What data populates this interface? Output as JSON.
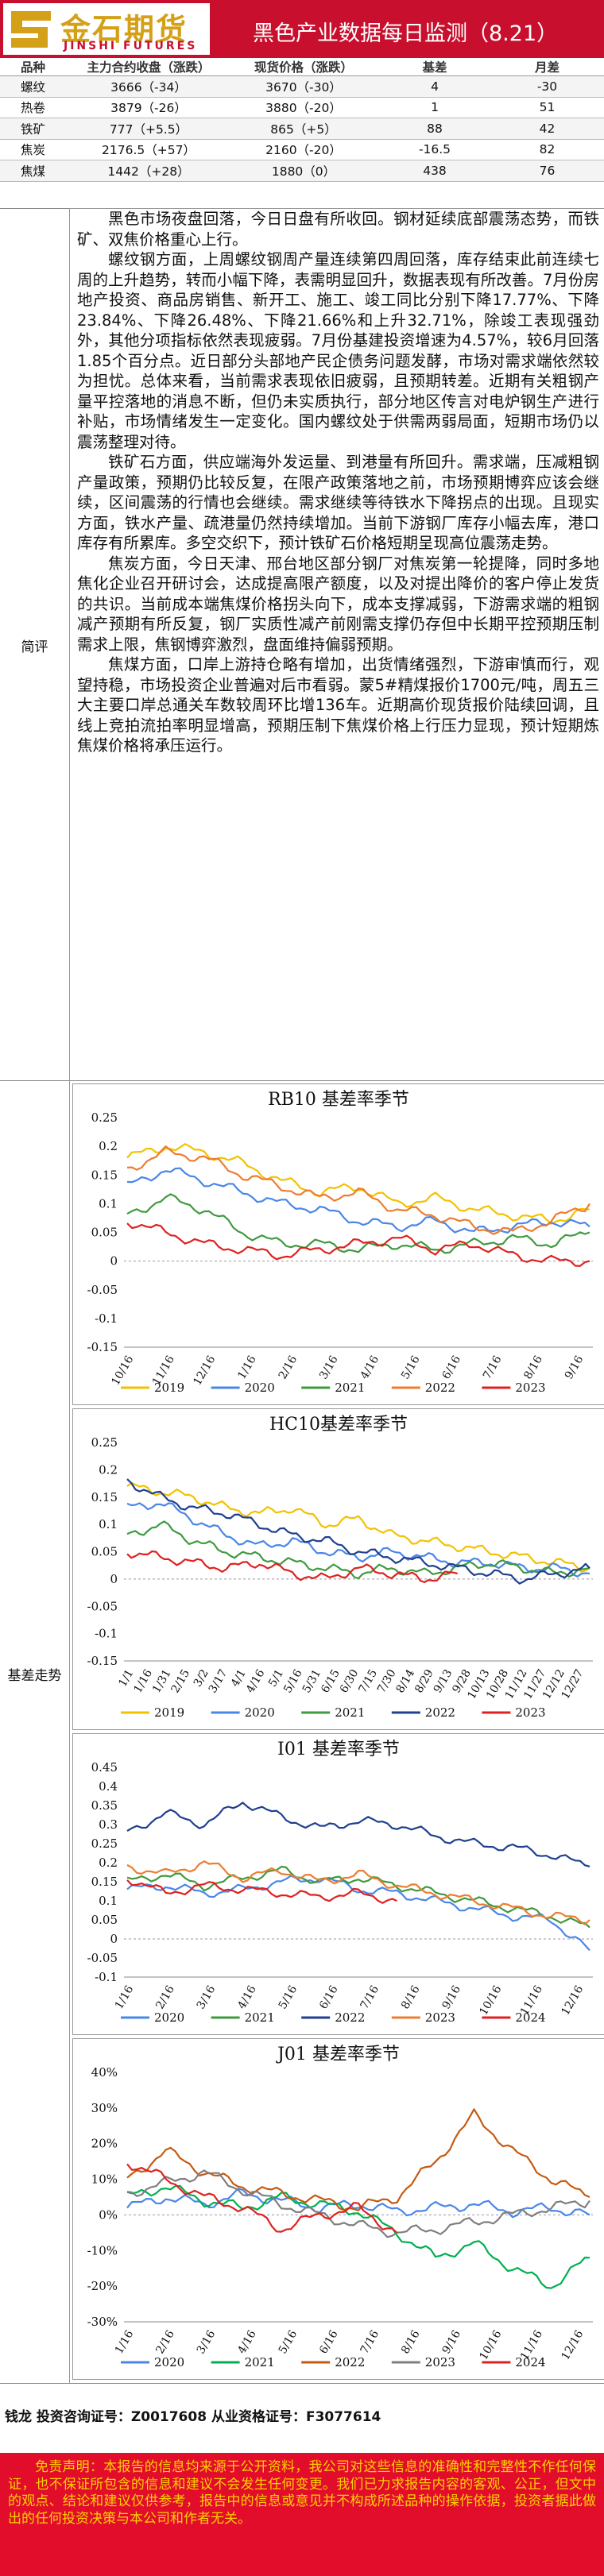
{
  "header": {
    "logo_cn": "金石期货",
    "logo_en": "JINSHI FUTURES",
    "title": "黑色产业数据每日监测（8.21）",
    "brand_red": "#c8102e",
    "brand_gold": "#d4a017"
  },
  "price_table": {
    "columns": [
      "品种",
      "主力合约收盘（涨跌）",
      "现货价格（涨跌）",
      "基差",
      "月差"
    ],
    "rows": [
      [
        "螺纹",
        "3666（-34）",
        "3670（-30）",
        "4",
        "-30"
      ],
      [
        "热卷",
        "3879（-26）",
        "3880（-20）",
        "1",
        "51"
      ],
      [
        "铁矿",
        "777（+5.5）",
        "865（+5）",
        "88",
        "42"
      ],
      [
        "焦炭",
        "2176.5（+57）",
        "2160（-20）",
        "-16.5",
        "82"
      ],
      [
        "焦煤",
        "1442（+28）",
        "1880（0）",
        "438",
        "76"
      ]
    ]
  },
  "commentary": {
    "label": "简评",
    "paragraphs": [
      "黑色市场夜盘回落，今日日盘有所收回。钢材延续底部震荡态势，而铁矿、双焦价格重心上行。",
      "螺纹钢方面，上周螺纹钢周产量连续第四周回落，库存结束此前连续七周的上升趋势，转而小幅下降，表需明显回升，数据表现有所改善。7月份房地产投资、商品房销售、新开工、施工、竣工同比分别下降17.77%、下降23.84%、下降26.48%、下降21.66%和上升32.71%，除竣工表现强劲外，其他分项指标依然表现疲弱。7月份基建投资增速为4.57%，较6月回落1.85个百分点。近日部分头部地产民企债务问题发酵，市场对需求端依然较为担忧。总体来看，当前需求表现依旧疲弱，且预期转差。近期有关粗钢产量平控落地的消息不断，但仍未实质执行，部分地区传言对电炉钢生产进行补贴，市场情绪发生一定变化。国内螺纹处于供需两弱局面，短期市场仍以震荡整理对待。",
      "铁矿石方面，供应端海外发运量、到港量有所回升。需求端，压减粗钢产量政策，预期仍比较反复，在限产政策落地之前，市场预期博弈应该会继续，区间震荡的行情也会继续。需求继续等待铁水下降拐点的出现。且现实方面，铁水产量、疏港量仍然持续增加。当前下游钢厂库存小幅去库，港口库存有所累库。多空交织下，预计铁矿石价格短期呈现高位震荡走势。",
      "焦炭方面，今日天津、邢台地区部分钢厂对焦炭第一轮提降，同时多地焦化企业召开研讨会，达成提高限产额度，以及对提出降价的客户停止发货的共识。当前成本端焦煤价格拐头向下，成本支撑减弱，下游需求端的粗钢减产预期有所反复，钢厂实质性减产前刚需支撑仍存但中长期平控预期压制需求上限，焦钢博弈激烈，盘面维持偏弱预期。",
      "焦煤方面，口岸上游持仓略有增加，出货情绪强烈，下游审慎而行，观望持稳，市场投资企业普遍对后市看弱。蒙5#精煤报价1700元/吨，周五三大主要口岸总通关车数较周环比增136车。近期高价现货报价陆续回调，且线上竞拍流拍率明显增高，预期压制下焦煤价格上行压力显现，预计短期炼焦煤价格将承压运行。"
    ]
  },
  "charts_label": "基差走势",
  "chart_data": [
    {
      "type": "line",
      "title": "RB10 基差率季节",
      "ylim": [
        -0.15,
        0.25
      ],
      "yticks": [
        "0.25",
        "0.2",
        "0.15",
        "0.1",
        "0.05",
        "0",
        "-0.05",
        "-0.1",
        "-0.15"
      ],
      "xticks": [
        "10/16",
        "11/16",
        "12/16",
        "1/16",
        "2/16",
        "3/16",
        "4/16",
        "5/16",
        "6/16",
        "7/16",
        "8/16",
        "9/16"
      ],
      "series": [
        {
          "name": "2019",
          "color": "#f2c200",
          "values": [
            0.18,
            0.2,
            0.19,
            0.17,
            0.14,
            0.12,
            0.13,
            0.1,
            0.11,
            0.09,
            0.08,
            0.07,
            0.09
          ]
        },
        {
          "name": "2020",
          "color": "#4a86e8",
          "values": [
            0.13,
            0.16,
            0.14,
            0.12,
            0.1,
            0.09,
            0.07,
            0.06,
            0.07,
            0.05,
            0.06,
            0.07,
            0.06
          ]
        },
        {
          "name": "2021",
          "color": "#3f9a3f",
          "values": [
            0.08,
            0.11,
            0.09,
            0.05,
            0.03,
            0.03,
            0.02,
            0.03,
            0.02,
            0.03,
            0.04,
            0.03,
            0.05
          ]
        },
        {
          "name": "2022",
          "color": "#ed7d31",
          "values": [
            0.16,
            0.19,
            0.18,
            0.15,
            0.13,
            0.11,
            0.12,
            0.09,
            0.08,
            0.06,
            0.05,
            0.07,
            0.1
          ]
        },
        {
          "name": "2023",
          "color": "#e02020",
          "values": [
            0.07,
            0.05,
            0.03,
            0.02,
            0.01,
            0.02,
            0.03,
            0.04,
            0.02,
            0.03,
            0.01,
            0.0,
            0.0
          ]
        }
      ]
    },
    {
      "type": "line",
      "title": "HC10基差率季节",
      "ylim": [
        -0.15,
        0.25
      ],
      "yticks": [
        "0.25",
        "0.2",
        "0.15",
        "0.1",
        "0.05",
        "0",
        "-0.05",
        "-0.1",
        "-0.15"
      ],
      "xticks": [
        "1/1",
        "1/16",
        "1/31",
        "2/15",
        "3/2",
        "3/17",
        "4/1",
        "4/16",
        "5/1",
        "5/16",
        "5/31",
        "6/15",
        "6/30",
        "7/15",
        "7/30",
        "8/14",
        "8/29",
        "9/13",
        "9/28",
        "10/13",
        "10/28",
        "11/12",
        "11/27",
        "12/12",
        "12/27"
      ],
      "series": [
        {
          "name": "2019",
          "color": "#f2c200",
          "values": [
            0.17,
            0.16,
            0.15,
            0.13,
            0.12,
            0.13,
            0.1,
            0.11,
            0.08,
            0.07,
            0.06,
            0.05,
            0.04,
            0.03,
            0.02
          ]
        },
        {
          "name": "2020",
          "color": "#4a86e8",
          "values": [
            0.13,
            0.14,
            0.11,
            0.08,
            0.06,
            0.07,
            0.05,
            0.04,
            0.05,
            0.04,
            0.03,
            0.03,
            0.02,
            0.02,
            0.01
          ]
        },
        {
          "name": "2021",
          "color": "#3f9a3f",
          "values": [
            0.08,
            0.1,
            0.07,
            0.05,
            0.04,
            0.03,
            0.02,
            0.01,
            0.02,
            0.01,
            0.02,
            0.03,
            0.02,
            0.01,
            0.02
          ]
        },
        {
          "name": "2022",
          "color": "#1f3f8f",
          "values": [
            0.18,
            0.15,
            0.13,
            0.12,
            0.1,
            0.08,
            0.07,
            0.05,
            0.04,
            0.03,
            0.02,
            0.01,
            0.0,
            0.01,
            0.02
          ]
        },
        {
          "name": "2023",
          "color": "#e02020",
          "values": [
            0.05,
            0.04,
            0.03,
            0.02,
            0.03,
            0.01,
            0.0,
            0.02,
            0.01,
            0.0,
            0.01
          ]
        }
      ]
    },
    {
      "type": "line",
      "title": "I01 基差率季节",
      "ylim": [
        -0.1,
        0.45
      ],
      "yticks": [
        "0.45",
        "0.4",
        "0.35",
        "0.3",
        "0.25",
        "0.2",
        "0.15",
        "0.1",
        "0.05",
        "0",
        "-0.05",
        "-0.1"
      ],
      "xticks": [
        "1/16",
        "2/16",
        "3/16",
        "4/16",
        "5/16",
        "6/16",
        "7/16",
        "8/16",
        "9/16",
        "10/16",
        "11/16",
        "12/16"
      ],
      "series": [
        {
          "name": "2020",
          "color": "#4a86e8",
          "values": [
            0.13,
            0.14,
            0.12,
            0.13,
            0.15,
            0.16,
            0.13,
            0.12,
            0.1,
            0.08,
            0.06,
            0.05,
            -0.03
          ]
        },
        {
          "name": "2021",
          "color": "#3f9a3f",
          "values": [
            0.15,
            0.17,
            0.14,
            0.16,
            0.18,
            0.15,
            0.16,
            0.14,
            0.12,
            0.1,
            0.08,
            0.06,
            0.03
          ]
        },
        {
          "name": "2022",
          "color": "#1f3f8f",
          "values": [
            0.28,
            0.33,
            0.3,
            0.36,
            0.32,
            0.29,
            0.31,
            0.3,
            0.27,
            0.25,
            0.24,
            0.22,
            0.19
          ]
        },
        {
          "name": "2023",
          "color": "#ed7d31",
          "values": [
            0.19,
            0.17,
            0.2,
            0.16,
            0.18,
            0.15,
            0.17,
            0.14,
            0.12,
            0.1,
            0.08,
            0.06,
            0.05
          ]
        },
        {
          "name": "2024",
          "color": "#e02020",
          "values": [
            0.16,
            0.12,
            0.14,
            0.13,
            0.12,
            0.11,
            0.12,
            0.1
          ]
        }
      ]
    },
    {
      "type": "line",
      "title": "J01 基差率季节",
      "ylim": [
        -0.3,
        0.4
      ],
      "yticks": [
        "40%",
        "30%",
        "20%",
        "10%",
        "0%",
        "-10%",
        "-20%",
        "-30%"
      ],
      "xticks": [
        "1/16",
        "2/16",
        "3/16",
        "4/16",
        "5/16",
        "6/16",
        "7/16",
        "8/16",
        "9/16",
        "10/16",
        "11/16",
        "12/16"
      ],
      "series": [
        {
          "name": "2020",
          "color": "#4a86e8",
          "values": [
            0.02,
            0.05,
            0.03,
            0.06,
            0.04,
            0.02,
            0.03,
            0.01,
            0.02,
            0.03,
            0.01,
            0.02,
            0.0
          ]
        },
        {
          "name": "2021",
          "color": "#00b050",
          "values": [
            0.05,
            0.08,
            0.04,
            0.02,
            0.05,
            0.03,
            0.01,
            -0.05,
            -0.12,
            -0.08,
            -0.15,
            -0.2,
            -0.12
          ]
        },
        {
          "name": "2022",
          "color": "#c55a11",
          "values": [
            0.1,
            0.18,
            0.12,
            0.08,
            0.06,
            0.04,
            0.02,
            0.05,
            0.15,
            0.28,
            0.18,
            0.1,
            0.05
          ]
        },
        {
          "name": "2023",
          "color": "#7f7f7f",
          "values": [
            0.06,
            0.09,
            0.12,
            0.07,
            0.03,
            0.0,
            -0.03,
            -0.05,
            -0.04,
            -0.02,
            0.0,
            0.02,
            0.04
          ]
        },
        {
          "name": "2024",
          "color": "#e02020",
          "values": [
            0.15,
            0.1,
            0.05,
            0.02,
            -0.04,
            0.0,
            0.02,
            -0.05
          ]
        }
      ]
    }
  ],
  "footer": {
    "author": "钱龙  投资咨询证号：Z0017608  从业资格证号：F3077614",
    "disclaimer": "免责声明：本报告的信息均来源于公开资料，我公司对这些信息的准确性和完整性不作任何保证，也不保证所包含的信息和建议不会发生任何变更。我们已力求报告内容的客观、公正，但文中的观点、结论和建议仅供参考，报告中的信息或意见并不构成所述品种的操作依据，投资者据此做出的任何投资决策与本公司和作者无关。",
    "disclaimer_bg": "#e10d2a",
    "disclaimer_fg": "#fbd000"
  }
}
